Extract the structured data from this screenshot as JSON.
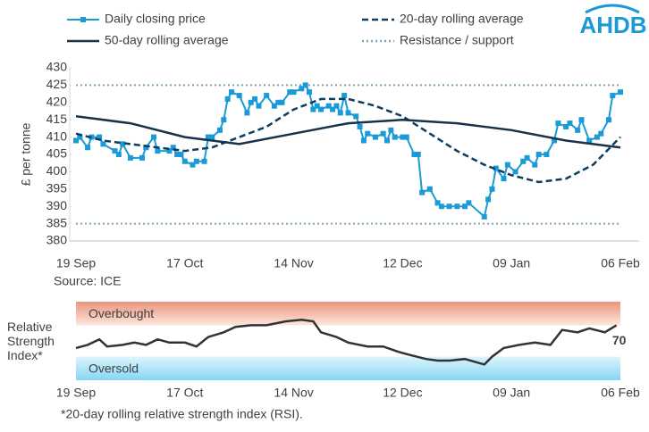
{
  "logo": "AHDB",
  "chart_data": [
    {
      "type": "line",
      "y_label": "£ per tonne",
      "source": "Source: ICE",
      "xlim": [
        0,
        140
      ],
      "xticks": [
        {
          "value": 0,
          "label": "19 Sep"
        },
        {
          "value": 28,
          "label": "17 Oct"
        },
        {
          "value": 56,
          "label": "14 Nov"
        },
        {
          "value": 84,
          "label": "12 Dec"
        },
        {
          "value": 112,
          "label": "09 Jan"
        },
        {
          "value": 140,
          "label": "06 Feb"
        }
      ],
      "ylim": [
        380,
        430
      ],
      "yticks": [
        380,
        385,
        390,
        395,
        400,
        405,
        410,
        415,
        420,
        425,
        430
      ],
      "series": [
        {
          "name": "Daily closing price",
          "color": "#1a9ad6",
          "style": "markers",
          "x": [
            0,
            1,
            3,
            4,
            6,
            7,
            10,
            11,
            12,
            14,
            17,
            18,
            20,
            21,
            24,
            25,
            26,
            27,
            28,
            30,
            31,
            33,
            34,
            35,
            37,
            38,
            39,
            40,
            42,
            44,
            45,
            46,
            47,
            49,
            51,
            52,
            53,
            55,
            56,
            58,
            59,
            60,
            61,
            62,
            63,
            65,
            66,
            67,
            68,
            69,
            70,
            72,
            73,
            74,
            75,
            77,
            79,
            80,
            81,
            82,
            84,
            85,
            87,
            88,
            89,
            91,
            93,
            94,
            96,
            98,
            100,
            101,
            105,
            106,
            107,
            108,
            110,
            111,
            113,
            115,
            116,
            118,
            119,
            121,
            123,
            124,
            126,
            127,
            129,
            130,
            132,
            134,
            135,
            137,
            138,
            140
          ],
          "values": [
            409,
            410,
            407,
            410,
            410,
            408,
            406,
            405,
            408,
            404,
            404,
            407,
            410,
            406,
            406,
            407,
            405,
            405,
            403,
            402,
            403,
            403,
            410,
            410,
            412,
            415,
            421,
            423,
            422,
            417,
            420,
            421,
            419,
            422,
            419,
            420,
            420,
            423,
            423,
            424,
            425,
            423,
            418,
            419,
            418,
            419,
            418,
            419,
            417,
            422,
            417,
            416,
            413,
            409,
            411,
            410,
            411,
            409,
            412,
            410,
            410,
            410,
            405,
            405,
            394,
            395,
            391,
            390,
            390,
            390,
            390,
            391,
            387,
            392,
            395,
            401,
            398,
            402,
            400,
            403,
            404,
            402,
            405,
            405,
            409,
            414,
            413,
            414,
            412,
            415,
            409,
            410,
            411,
            415,
            422,
            423
          ]
        },
        {
          "name": "20-day rolling average",
          "color": "#0f3d5e",
          "style": "dashed",
          "x": [
            0,
            7,
            14,
            21,
            28,
            35,
            42,
            49,
            56,
            63,
            70,
            77,
            84,
            91,
            98,
            105,
            112,
            119,
            126,
            133,
            140
          ],
          "values": [
            411,
            409,
            408,
            407,
            406,
            407,
            410,
            413,
            418,
            421,
            421,
            419,
            416,
            411,
            406,
            402,
            399,
            397,
            398,
            402,
            410
          ]
        },
        {
          "name": "50-day rolling average",
          "color": "#17324a",
          "style": "solid",
          "x": [
            0,
            14,
            28,
            42,
            56,
            70,
            84,
            98,
            112,
            126,
            140
          ],
          "values": [
            416,
            414,
            410,
            408,
            411,
            414,
            415,
            414,
            412,
            409,
            407
          ]
        }
      ],
      "reference_lines": {
        "name": "Resistance / support",
        "color": "#7fa3b5",
        "style": "dotted",
        "values": [
          425,
          385
        ]
      }
    },
    {
      "type": "line",
      "y_label": "Relative Strength Index*",
      "footnote": "*20-day rolling relative strength index (RSI).",
      "xlim": [
        0,
        140
      ],
      "xticks": [
        {
          "value": 0,
          "label": "19 Sep"
        },
        {
          "value": 28,
          "label": "17 Oct"
        },
        {
          "value": 56,
          "label": "14 Nov"
        },
        {
          "value": 84,
          "label": "12 Dec"
        },
        {
          "value": 112,
          "label": "09 Jan"
        },
        {
          "value": 140,
          "label": "06 Feb"
        }
      ],
      "ylim": [
        0,
        100
      ],
      "bands": [
        {
          "label": "Overbought",
          "range": [
            70,
            100
          ],
          "colors": [
            "#e9957b",
            "#fde6dd"
          ]
        },
        {
          "label": "Oversold",
          "range": [
            0,
            30
          ],
          "colors": [
            "#dcf5fc",
            "#86d6f2"
          ]
        }
      ],
      "label_last": true,
      "series": [
        {
          "color": "#333333",
          "style": "solid",
          "x": [
            0,
            3,
            6,
            8,
            12,
            15,
            18,
            21,
            24,
            28,
            31,
            34,
            38,
            41,
            45,
            49,
            54,
            58,
            61,
            63,
            67,
            70,
            75,
            79,
            83,
            86,
            90,
            93,
            96,
            100,
            105,
            107,
            110,
            114,
            118,
            122,
            125,
            129,
            132,
            136,
            139
          ],
          "values": [
            41,
            45,
            52,
            43,
            45,
            48,
            45,
            52,
            48,
            48,
            43,
            55,
            61,
            68,
            70,
            70,
            75,
            77,
            75,
            61,
            55,
            48,
            43,
            43,
            36,
            32,
            27,
            25,
            25,
            27,
            20,
            30,
            41,
            45,
            48,
            45,
            64,
            61,
            66,
            61,
            70
          ]
        }
      ]
    }
  ]
}
